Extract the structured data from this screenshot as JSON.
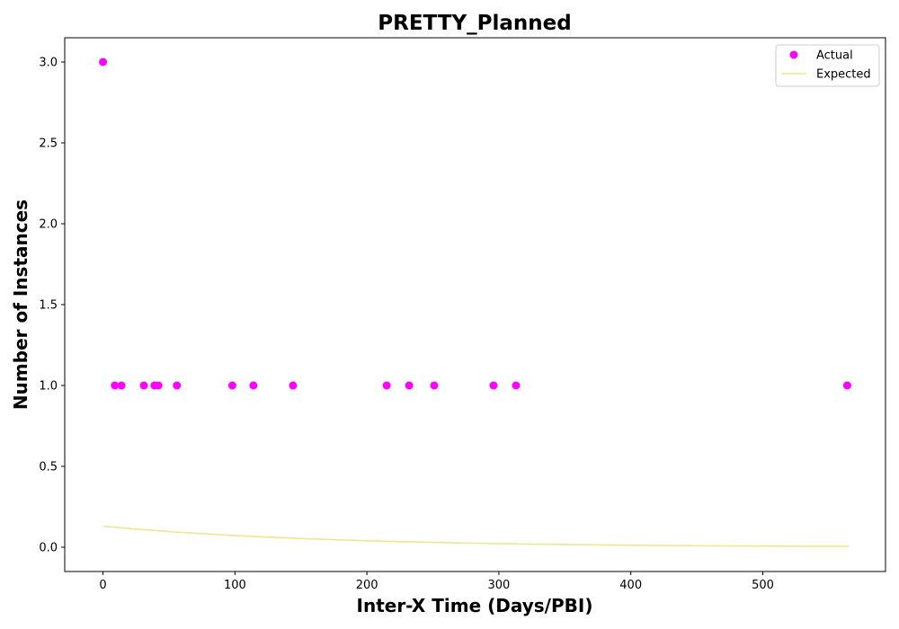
{
  "chart_data": {
    "type": "scatter",
    "title": "PRETTY_Planned",
    "xlabel": "Inter-X Time (Days/PBI)",
    "ylabel": "Number of Instances",
    "xlim": [
      -29,
      593
    ],
    "ylim": [
      -0.15,
      3.15
    ],
    "xticks": [
      0,
      100,
      200,
      300,
      400,
      500
    ],
    "yticks": [
      0.0,
      0.5,
      1.0,
      1.5,
      2.0,
      2.5,
      3.0
    ],
    "xtick_labels": [
      "0",
      "100",
      "200",
      "300",
      "400",
      "500"
    ],
    "ytick_labels": [
      "0.0",
      "0.5",
      "1.0",
      "1.5",
      "2.0",
      "2.5",
      "3.0"
    ],
    "grid": false,
    "legend_position": "top-right",
    "series": [
      {
        "name": "Actual",
        "kind": "scatter",
        "color": "#ff00ff",
        "x": [
          0,
          9,
          14,
          31,
          39,
          42,
          56,
          98,
          114,
          144,
          215,
          232,
          251,
          296,
          313,
          564
        ],
        "y": [
          3,
          1,
          1,
          1,
          1,
          1,
          1,
          1,
          1,
          1,
          1,
          1,
          1,
          1,
          1,
          1
        ]
      },
      {
        "name": "Expected",
        "kind": "line",
        "color": "#f0e68c",
        "x": [
          0,
          25,
          50,
          75,
          100,
          150,
          200,
          250,
          300,
          350,
          400,
          450,
          500,
          565
        ],
        "y": [
          0.13,
          0.112,
          0.097,
          0.084,
          0.072,
          0.054,
          0.04,
          0.03,
          0.022,
          0.017,
          0.012,
          0.009,
          0.007,
          0.005
        ]
      }
    ]
  }
}
